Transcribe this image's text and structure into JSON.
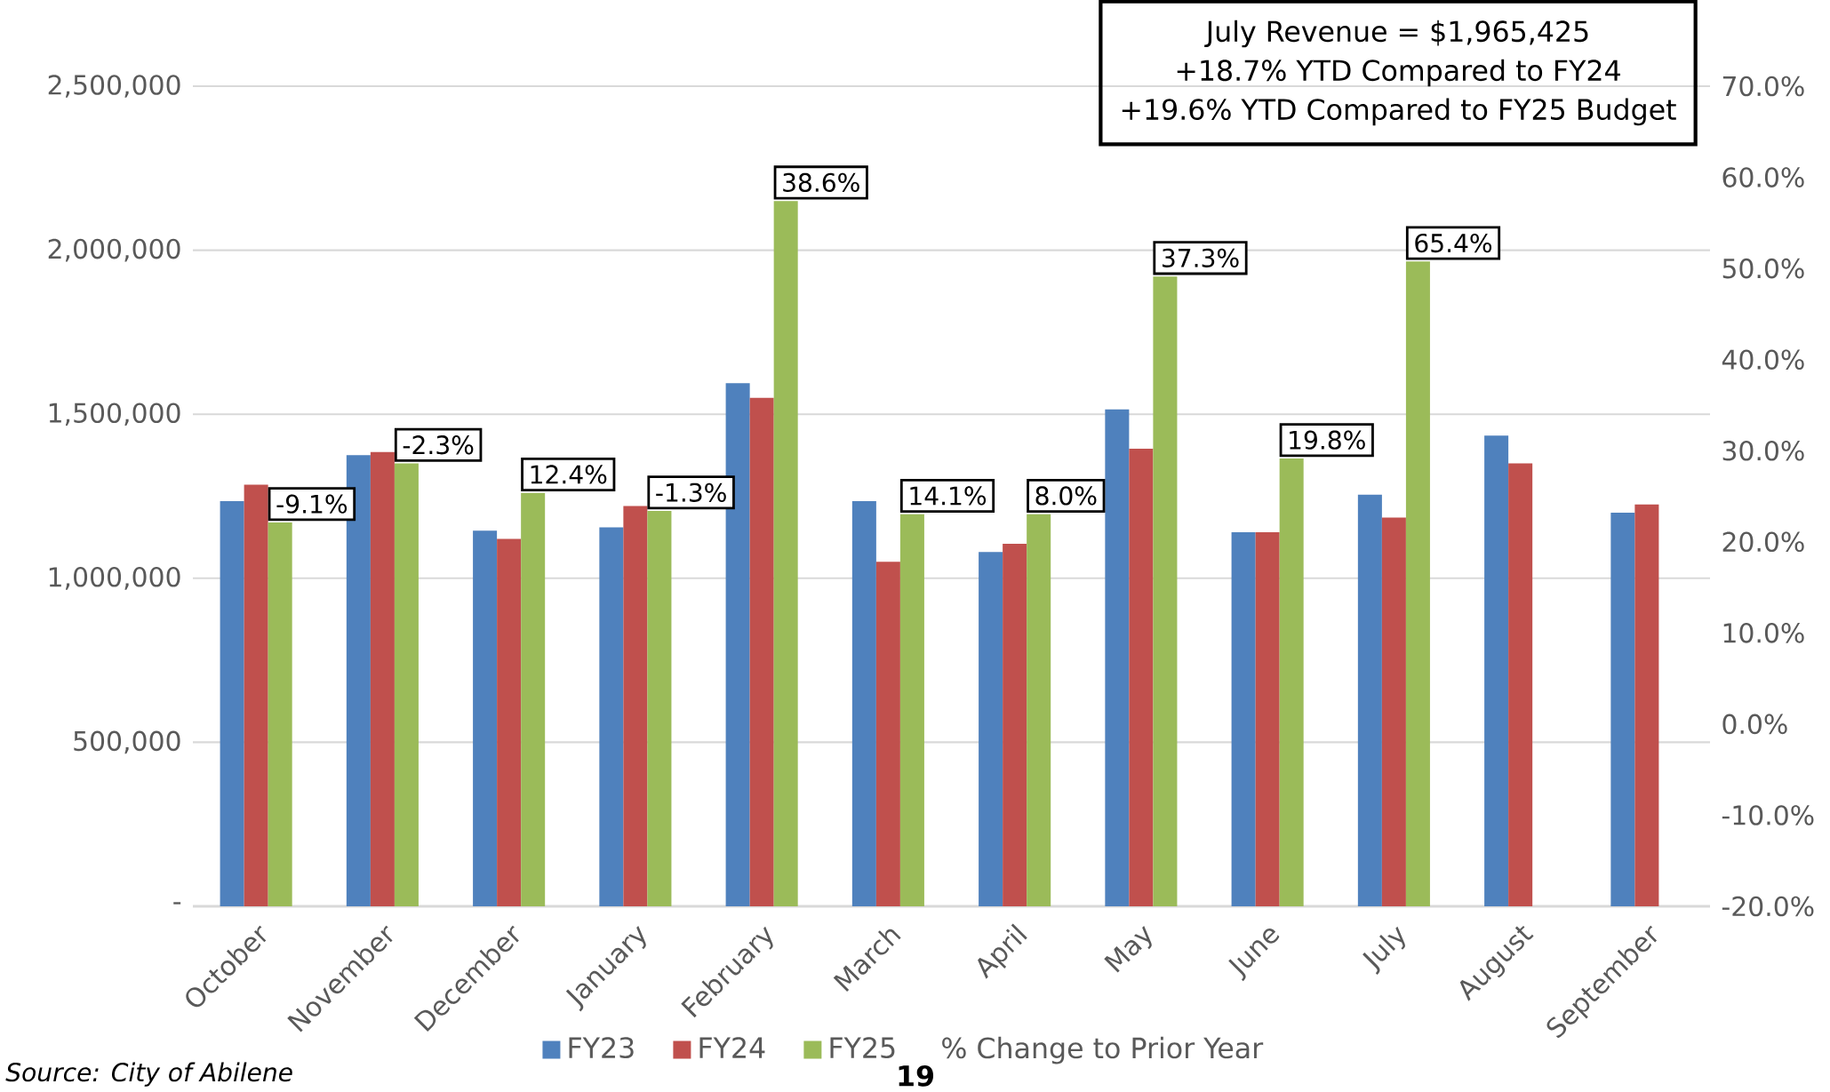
{
  "chart_data": {
    "type": "bar",
    "categories": [
      "October",
      "November",
      "December",
      "January",
      "February",
      "March",
      "April",
      "May",
      "June",
      "July",
      "August",
      "September"
    ],
    "series": [
      {
        "name": "FY23",
        "color": "#4f81bd",
        "values": [
          1235000,
          1375000,
          1145000,
          1155000,
          1595000,
          1235000,
          1080000,
          1515000,
          1140000,
          1255000,
          1435000,
          1200000
        ]
      },
      {
        "name": "FY24",
        "color": "#c0504d",
        "values": [
          1285000,
          1385000,
          1120000,
          1220000,
          1550000,
          1050000,
          1105000,
          1395000,
          1140000,
          1185000,
          1350000,
          1225000
        ]
      },
      {
        "name": "FY25",
        "color": "#9bbb59",
        "values": [
          1170000,
          1350000,
          1260000,
          1205000,
          2150000,
          1195000,
          1195000,
          1920000,
          1365000,
          1965425,
          null,
          null
        ]
      }
    ],
    "ylim": [
      0,
      2500000
    ],
    "yticks": [
      {
        "value": 0,
        "label": "-"
      },
      {
        "value": 500000,
        "label": "500,000"
      },
      {
        "value": 1000000,
        "label": "1,000,000"
      },
      {
        "value": 1500000,
        "label": "1,500,000"
      },
      {
        "value": 2000000,
        "label": "2,000,000"
      },
      {
        "value": 2500000,
        "label": "2,500,000"
      }
    ],
    "y2lim": [
      -20,
      70
    ],
    "y2ticks": [
      {
        "value": -20,
        "label": "-20.0%"
      },
      {
        "value": -10,
        "label": "-10.0%"
      },
      {
        "value": 0,
        "label": "0.0%"
      },
      {
        "value": 10,
        "label": "10.0%"
      },
      {
        "value": 20,
        "label": "20.0%"
      },
      {
        "value": 30,
        "label": "30.0%"
      },
      {
        "value": 40,
        "label": "40.0%"
      },
      {
        "value": 50,
        "label": "50.0%"
      },
      {
        "value": 60,
        "label": "60.0%"
      },
      {
        "value": 70,
        "label": "70.0%"
      }
    ],
    "grid": "y",
    "legend": "bottom",
    "annotations": [
      "July Revenue = $1,965,425",
      "+18.7% YTD Compared to FY24",
      "+19.6% YTD Compared to FY25 Budget",
      "*Source: City of Abilene*",
      "% Change to Prior Year",
      "**19**",
      "-9.1%",
      "-2.3%",
      "12.4%",
      "-1.3%",
      "38.6%",
      "14.1%",
      "8.0%",
      "37.3%",
      "19.8%",
      "65.4%"
    ]
  }
}
